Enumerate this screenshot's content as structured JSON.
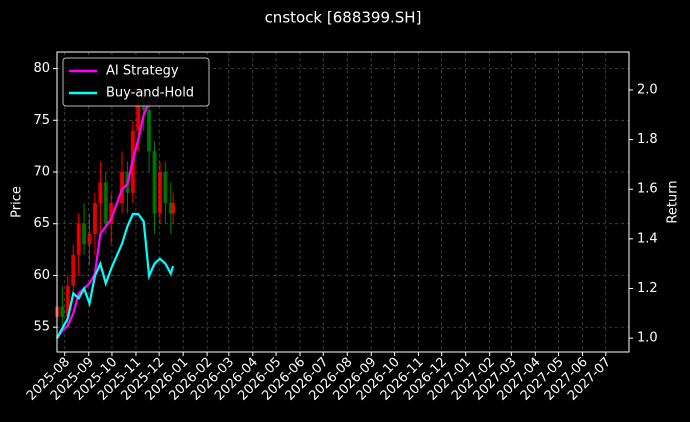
{
  "chart_data": {
    "type": "candlestick",
    "title": "cnstock [688399.SH]",
    "ylabel": "Price",
    "y2label": "Return",
    "grid": true,
    "legend": "upper left",
    "up_color": "#ff0000",
    "down_color": "#008000",
    "x": [
      "2025-07-22",
      "2025-07-29",
      "2025-08-05",
      "2025-08-12",
      "2025-08-19",
      "2025-08-26",
      "2025-09-02",
      "2025-09-09",
      "2025-09-16",
      "2025-09-23",
      "2025-09-30",
      "2025-10-14",
      "2025-10-21",
      "2025-10-28",
      "2025-11-04",
      "2025-11-11",
      "2025-11-18",
      "2025-11-25",
      "2025-12-02",
      "2025-12-09",
      "2025-12-16",
      "2025-12-19"
    ],
    "open": [
      56,
      57,
      56,
      59,
      62,
      65,
      63,
      64,
      67,
      69,
      65,
      67,
      70,
      68,
      74,
      77,
      76,
      72,
      66,
      70,
      67,
      66
    ],
    "high": [
      58,
      59,
      60,
      63,
      66,
      67,
      66,
      68,
      71,
      70,
      68,
      72,
      71,
      75,
      80,
      79,
      78,
      73,
      71,
      71,
      69,
      68
    ],
    "low": [
      54.5,
      55,
      55,
      58,
      60,
      62,
      61,
      62,
      64,
      64,
      63,
      66,
      66,
      67,
      72,
      74,
      70,
      64,
      65,
      65,
      64,
      65
    ],
    "close": [
      57,
      56,
      59,
      62,
      65,
      63,
      64,
      67,
      69,
      65,
      67,
      70,
      68,
      74,
      77,
      76,
      72,
      66,
      70,
      67,
      66,
      67
    ],
    "series": [
      {
        "name": "AI Strategy",
        "color": "#ff00ff",
        "axis": "y2",
        "values": [
          1.0,
          1.03,
          1.05,
          1.1,
          1.18,
          1.2,
          1.22,
          1.26,
          1.42,
          1.45,
          1.48,
          1.6,
          1.62,
          1.72,
          1.8,
          1.9,
          1.95,
          1.95,
          1.98,
          null,
          null,
          null
        ]
      },
      {
        "name": "Buy-and-Hold",
        "color": "#00ffff",
        "axis": "y2",
        "values": [
          1.0,
          1.04,
          1.08,
          1.18,
          1.16,
          1.2,
          1.14,
          1.25,
          1.3,
          1.22,
          1.28,
          1.38,
          1.45,
          1.5,
          1.5,
          1.47,
          1.25,
          1.3,
          1.32,
          1.3,
          1.26,
          1.29
        ]
      }
    ],
    "xlim": [
      "2025-07-22",
      "2027-07-31"
    ],
    "xticks": [
      "2025-08",
      "2025-09",
      "2025-10",
      "2025-11",
      "2025-12",
      "2026-01",
      "2026-02",
      "2026-03",
      "2026-04",
      "2026-05",
      "2026-06",
      "2026-07",
      "2026-08",
      "2026-09",
      "2026-10",
      "2026-11",
      "2026-12",
      "2027-01",
      "2027-02",
      "2027-03",
      "2027-04",
      "2027-05",
      "2027-06",
      "2027-07"
    ],
    "ylim": [
      52.6,
      81.6
    ],
    "yticks": [
      55,
      60,
      65,
      70,
      75,
      80
    ],
    "y2lim": [
      0.944,
      2.153
    ],
    "y2ticks": [
      {
        "value": 1.0,
        "label": "1.0"
      },
      1.2,
      1.4,
      1.6,
      1.8,
      {
        "value": 2.0,
        "label": "2.0"
      }
    ]
  }
}
